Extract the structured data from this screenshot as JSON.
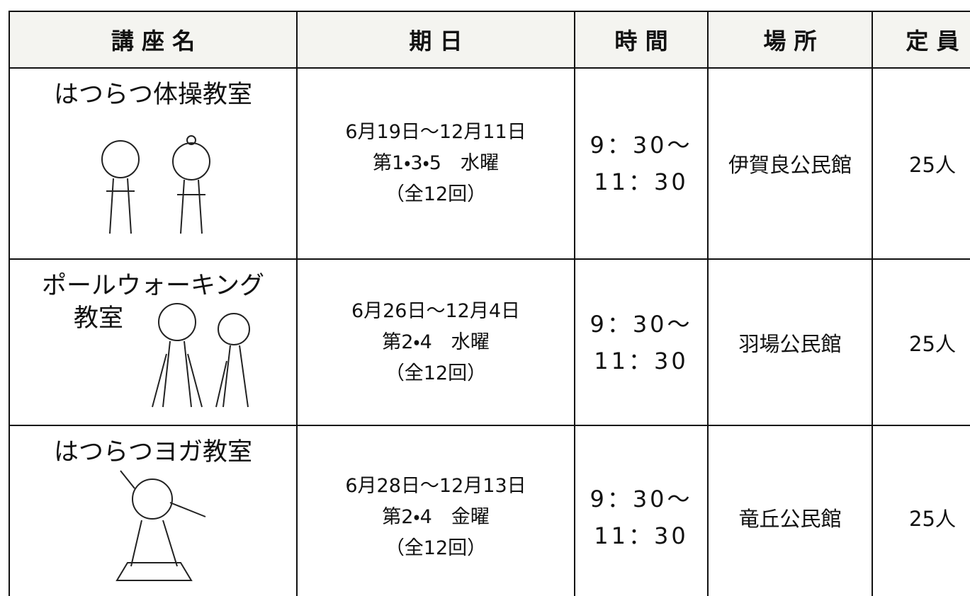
{
  "table": {
    "header": [
      "講 座 名",
      "期 日",
      "時 間",
      "場 所",
      "定 員"
    ],
    "rows": [
      {
        "name": [
          "はつらつ体操教室"
        ],
        "dates": [
          "6月19日～12月11日",
          "第1・3・5　水曜",
          "（全12回）"
        ],
        "time": [
          "9：30～",
          "11：30"
        ],
        "place": "伊賀良公民館",
        "capacity": "25人"
      },
      {
        "name": [
          "ポールウォーキング",
          "教室"
        ],
        "dates": [
          "6月26日～12月4日",
          "第2・4　水曜",
          "（全12回）"
        ],
        "time": [
          "9：30～",
          "11：30"
        ],
        "place": "羽場公民館",
        "capacity": "25人"
      },
      {
        "name": [
          "はつらつヨガ教室"
        ],
        "dates": [
          "6月28日～12月13日",
          "第2・4　金曜",
          "（全12回）"
        ],
        "time": [
          "9：30～",
          "11：30"
        ],
        "place": "竜丘公民館",
        "capacity": "25人"
      }
    ]
  }
}
